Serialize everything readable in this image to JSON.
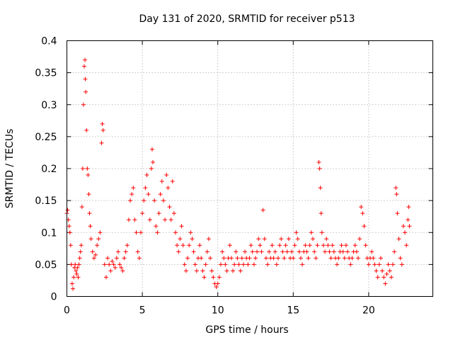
{
  "chart_data": {
    "type": "scatter",
    "title": "Day 131 of 2020, SRMTID for receiver p513",
    "xlabel": "GPS time / hours",
    "ylabel": "SRMTID / TECUs",
    "xlim": [
      0,
      24.25
    ],
    "ylim": [
      0,
      0.4
    ],
    "xticks": [
      0,
      5,
      10,
      15,
      20
    ],
    "xtick_labels": [
      "0",
      "5",
      "10",
      "15",
      "20"
    ],
    "yticks": [
      0,
      0.05,
      0.1,
      0.15,
      0.2,
      0.25,
      0.3,
      0.35,
      0.4
    ],
    "ytick_labels": [
      "0",
      "0.05",
      "0.1",
      "0.15",
      "0.2",
      "0.25",
      "0.3",
      "0.35",
      "0.4"
    ],
    "grid": true,
    "legend": "none",
    "marker": "+",
    "color": "#ff0000",
    "series": [
      {
        "name": "SRMTID",
        "points": [
          [
            0.0,
            0.13
          ],
          [
            0.05,
            0.135
          ],
          [
            0.1,
            0.12
          ],
          [
            0.15,
            0.11
          ],
          [
            0.2,
            0.1
          ],
          [
            0.25,
            0.08
          ],
          [
            0.3,
            0.05
          ],
          [
            0.35,
            0.02
          ],
          [
            0.4,
            0.012
          ],
          [
            0.45,
            0.03
          ],
          [
            0.5,
            0.045
          ],
          [
            0.55,
            0.05
          ],
          [
            0.6,
            0.04
          ],
          [
            0.65,
            0.035
          ],
          [
            0.7,
            0.045
          ],
          [
            0.75,
            0.03
          ],
          [
            0.8,
            0.05
          ],
          [
            0.85,
            0.06
          ],
          [
            0.9,
            0.07
          ],
          [
            0.95,
            0.08
          ],
          [
            1.0,
            0.14
          ],
          [
            1.05,
            0.2
          ],
          [
            1.1,
            0.3
          ],
          [
            1.15,
            0.36
          ],
          [
            1.2,
            0.37
          ],
          [
            1.22,
            0.34
          ],
          [
            1.25,
            0.32
          ],
          [
            1.3,
            0.26
          ],
          [
            1.35,
            0.2
          ],
          [
            1.4,
            0.19
          ],
          [
            1.45,
            0.16
          ],
          [
            1.5,
            0.13
          ],
          [
            1.55,
            0.11
          ],
          [
            1.6,
            0.09
          ],
          [
            1.7,
            0.07
          ],
          [
            1.8,
            0.06
          ],
          [
            1.9,
            0.065
          ],
          [
            2.0,
            0.08
          ],
          [
            2.1,
            0.09
          ],
          [
            2.2,
            0.1
          ],
          [
            2.3,
            0.24
          ],
          [
            2.35,
            0.27
          ],
          [
            2.4,
            0.26
          ],
          [
            2.5,
            0.05
          ],
          [
            2.6,
            0.03
          ],
          [
            2.7,
            0.06
          ],
          [
            2.8,
            0.05
          ],
          [
            2.9,
            0.04
          ],
          [
            3.0,
            0.055
          ],
          [
            3.1,
            0.05
          ],
          [
            3.2,
            0.045
          ],
          [
            3.3,
            0.06
          ],
          [
            3.4,
            0.07
          ],
          [
            3.5,
            0.05
          ],
          [
            3.6,
            0.045
          ],
          [
            3.7,
            0.04
          ],
          [
            3.8,
            0.06
          ],
          [
            3.9,
            0.07
          ],
          [
            4.0,
            0.08
          ],
          [
            4.1,
            0.12
          ],
          [
            4.2,
            0.15
          ],
          [
            4.3,
            0.16
          ],
          [
            4.4,
            0.17
          ],
          [
            4.5,
            0.12
          ],
          [
            4.6,
            0.1
          ],
          [
            4.7,
            0.07
          ],
          [
            4.8,
            0.06
          ],
          [
            4.9,
            0.1
          ],
          [
            5.0,
            0.13
          ],
          [
            5.1,
            0.15
          ],
          [
            5.2,
            0.17
          ],
          [
            5.3,
            0.19
          ],
          [
            5.4,
            0.16
          ],
          [
            5.5,
            0.12
          ],
          [
            5.6,
            0.2
          ],
          [
            5.65,
            0.23
          ],
          [
            5.7,
            0.21
          ],
          [
            5.8,
            0.15
          ],
          [
            5.9,
            0.11
          ],
          [
            6.0,
            0.1
          ],
          [
            6.1,
            0.13
          ],
          [
            6.2,
            0.16
          ],
          [
            6.3,
            0.18
          ],
          [
            6.4,
            0.15
          ],
          [
            6.5,
            0.12
          ],
          [
            6.6,
            0.19
          ],
          [
            6.7,
            0.17
          ],
          [
            6.8,
            0.14
          ],
          [
            6.9,
            0.12
          ],
          [
            7.0,
            0.18
          ],
          [
            7.1,
            0.13
          ],
          [
            7.2,
            0.1
          ],
          [
            7.3,
            0.08
          ],
          [
            7.4,
            0.07
          ],
          [
            7.5,
            0.09
          ],
          [
            7.6,
            0.11
          ],
          [
            7.7,
            0.08
          ],
          [
            7.8,
            0.05
          ],
          [
            7.9,
            0.04
          ],
          [
            8.0,
            0.06
          ],
          [
            8.1,
            0.08
          ],
          [
            8.2,
            0.1
          ],
          [
            8.3,
            0.09
          ],
          [
            8.4,
            0.07
          ],
          [
            8.5,
            0.05
          ],
          [
            8.6,
            0.04
          ],
          [
            8.7,
            0.06
          ],
          [
            8.8,
            0.08
          ],
          [
            8.9,
            0.06
          ],
          [
            9.0,
            0.04
          ],
          [
            9.1,
            0.03
          ],
          [
            9.2,
            0.05
          ],
          [
            9.3,
            0.07
          ],
          [
            9.4,
            0.09
          ],
          [
            9.5,
            0.06
          ],
          [
            9.6,
            0.04
          ],
          [
            9.7,
            0.03
          ],
          [
            9.8,
            0.02
          ],
          [
            9.9,
            0.015
          ],
          [
            10.0,
            0.02
          ],
          [
            10.1,
            0.03
          ],
          [
            10.2,
            0.05
          ],
          [
            10.3,
            0.07
          ],
          [
            10.4,
            0.06
          ],
          [
            10.5,
            0.05
          ],
          [
            10.6,
            0.04
          ],
          [
            10.7,
            0.06
          ],
          [
            10.8,
            0.08
          ],
          [
            10.9,
            0.06
          ],
          [
            11.0,
            0.04
          ],
          [
            11.1,
            0.05
          ],
          [
            11.2,
            0.07
          ],
          [
            11.3,
            0.06
          ],
          [
            11.4,
            0.05
          ],
          [
            11.5,
            0.04
          ],
          [
            11.6,
            0.06
          ],
          [
            11.7,
            0.05
          ],
          [
            11.8,
            0.07
          ],
          [
            11.9,
            0.06
          ],
          [
            12.0,
            0.05
          ],
          [
            12.1,
            0.06
          ],
          [
            12.2,
            0.08
          ],
          [
            12.3,
            0.07
          ],
          [
            12.4,
            0.05
          ],
          [
            12.5,
            0.06
          ],
          [
            12.6,
            0.07
          ],
          [
            12.7,
            0.09
          ],
          [
            12.8,
            0.08
          ],
          [
            12.9,
            0.07
          ],
          [
            13.0,
            0.135
          ],
          [
            13.1,
            0.09
          ],
          [
            13.2,
            0.06
          ],
          [
            13.3,
            0.05
          ],
          [
            13.4,
            0.07
          ],
          [
            13.5,
            0.06
          ],
          [
            13.6,
            0.08
          ],
          [
            13.7,
            0.06
          ],
          [
            13.8,
            0.07
          ],
          [
            13.9,
            0.05
          ],
          [
            14.0,
            0.06
          ],
          [
            14.1,
            0.08
          ],
          [
            14.2,
            0.09
          ],
          [
            14.3,
            0.07
          ],
          [
            14.4,
            0.06
          ],
          [
            14.5,
            0.08
          ],
          [
            14.6,
            0.07
          ],
          [
            14.7,
            0.09
          ],
          [
            14.8,
            0.06
          ],
          [
            14.9,
            0.07
          ],
          [
            15.0,
            0.06
          ],
          [
            15.1,
            0.08
          ],
          [
            15.2,
            0.1
          ],
          [
            15.3,
            0.09
          ],
          [
            15.4,
            0.07
          ],
          [
            15.5,
            0.06
          ],
          [
            15.6,
            0.05
          ],
          [
            15.7,
            0.07
          ],
          [
            15.8,
            0.08
          ],
          [
            15.9,
            0.07
          ],
          [
            16.0,
            0.06
          ],
          [
            16.1,
            0.08
          ],
          [
            16.2,
            0.1
          ],
          [
            16.3,
            0.09
          ],
          [
            16.4,
            0.07
          ],
          [
            16.5,
            0.06
          ],
          [
            16.6,
            0.08
          ],
          [
            16.7,
            0.21
          ],
          [
            16.75,
            0.2
          ],
          [
            16.8,
            0.17
          ],
          [
            16.85,
            0.13
          ],
          [
            16.9,
            0.1
          ],
          [
            17.0,
            0.08
          ],
          [
            17.1,
            0.07
          ],
          [
            17.2,
            0.09
          ],
          [
            17.3,
            0.08
          ],
          [
            17.4,
            0.07
          ],
          [
            17.5,
            0.06
          ],
          [
            17.6,
            0.08
          ],
          [
            17.7,
            0.07
          ],
          [
            17.8,
            0.06
          ],
          [
            17.9,
            0.05
          ],
          [
            18.0,
            0.06
          ],
          [
            18.1,
            0.07
          ],
          [
            18.2,
            0.08
          ],
          [
            18.3,
            0.07
          ],
          [
            18.4,
            0.06
          ],
          [
            18.5,
            0.08
          ],
          [
            18.6,
            0.07
          ],
          [
            18.7,
            0.06
          ],
          [
            18.8,
            0.05
          ],
          [
            18.9,
            0.06
          ],
          [
            19.0,
            0.07
          ],
          [
            19.1,
            0.08
          ],
          [
            19.2,
            0.07
          ],
          [
            19.3,
            0.06
          ],
          [
            19.4,
            0.09
          ],
          [
            19.5,
            0.14
          ],
          [
            19.6,
            0.13
          ],
          [
            19.7,
            0.11
          ],
          [
            19.8,
            0.08
          ],
          [
            19.9,
            0.06
          ],
          [
            20.0,
            0.05
          ],
          [
            20.1,
            0.06
          ],
          [
            20.2,
            0.07
          ],
          [
            20.3,
            0.06
          ],
          [
            20.4,
            0.05
          ],
          [
            20.5,
            0.04
          ],
          [
            20.6,
            0.03
          ],
          [
            20.7,
            0.05
          ],
          [
            20.8,
            0.06
          ],
          [
            20.9,
            0.04
          ],
          [
            21.0,
            0.03
          ],
          [
            21.1,
            0.02
          ],
          [
            21.2,
            0.035
          ],
          [
            21.3,
            0.05
          ],
          [
            21.4,
            0.04
          ],
          [
            21.5,
            0.03
          ],
          [
            21.6,
            0.05
          ],
          [
            21.7,
            0.07
          ],
          [
            21.8,
            0.17
          ],
          [
            21.85,
            0.16
          ],
          [
            21.9,
            0.13
          ],
          [
            22.0,
            0.09
          ],
          [
            22.1,
            0.06
          ],
          [
            22.2,
            0.05
          ],
          [
            22.3,
            0.11
          ],
          [
            22.4,
            0.1
          ],
          [
            22.5,
            0.08
          ],
          [
            22.6,
            0.12
          ],
          [
            22.65,
            0.14
          ],
          [
            22.7,
            0.11
          ]
        ]
      }
    ]
  }
}
